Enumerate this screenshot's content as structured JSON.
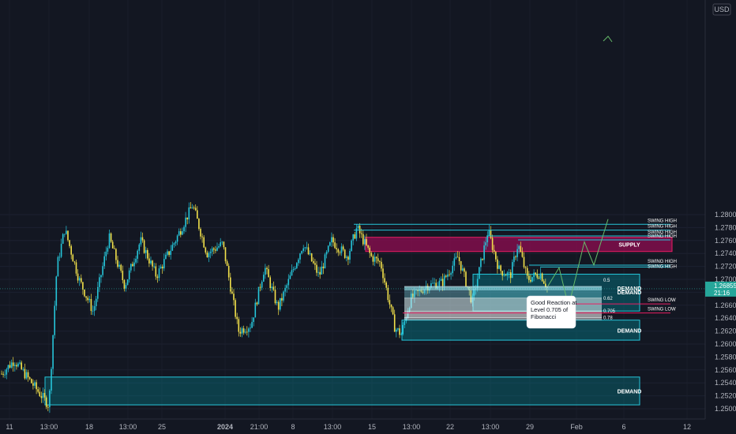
{
  "currency": "USD",
  "current_price": "1.26855",
  "countdown": "21:16",
  "chart_data": {
    "type": "candlestick",
    "ylim": [
      1.2495,
      1.2825
    ],
    "y_ticks": [
      "1.28000",
      "1.27800",
      "1.27600",
      "1.27400",
      "1.27200",
      "1.27000",
      "1.26800",
      "1.26600",
      "1.26400",
      "1.26200",
      "1.26000",
      "1.25800",
      "1.25600",
      "1.25400",
      "1.25200",
      "1.25000"
    ],
    "x_ticks": [
      "11",
      "13:00",
      "18",
      "13:00",
      "25",
      "2024",
      "21:00",
      "8",
      "13:00",
      "15",
      "13:00",
      "22",
      "13:00",
      "29",
      "Feb",
      "6",
      "12"
    ],
    "zones": [
      {
        "label": "SUPPLY",
        "y_top": 1.2765,
        "y_bottom": 1.2743
      },
      {
        "label": "DEMAND",
        "y_top": 1.2708,
        "y_bottom": 1.2651
      },
      {
        "label": "DEMAND",
        "y_top": 1.2637,
        "y_bottom": 1.2606
      },
      {
        "label": "DEMAND",
        "y_top": 1.2549,
        "y_bottom": 1.2506
      }
    ],
    "swing_levels": [
      {
        "label": "SWING HIGH",
        "y": 1.2785
      },
      {
        "label": "SWING HIGH",
        "y": 1.2776
      },
      {
        "label": "SWING HIGH",
        "y": 1.2767
      },
      {
        "label": "SWING HIGH",
        "y": 1.2761
      },
      {
        "label": "SWING HIGH",
        "y": 1.2722
      },
      {
        "label": "SWING HIGH",
        "y": 1.2719
      },
      {
        "label": "SWING LOW",
        "y": 1.2662
      },
      {
        "label": "SWING LOW",
        "y": 1.2648
      }
    ],
    "fib_levels": [
      {
        "label": "0.5",
        "y": 1.2689
      },
      {
        "label": "0.62",
        "y": 1.2671
      },
      {
        "label": "0.705",
        "y": 1.2651
      },
      {
        "label": "0.78",
        "y": 1.2641
      }
    ],
    "annotation": "Good Reaction at Level 0.705 of Fibonacci"
  }
}
